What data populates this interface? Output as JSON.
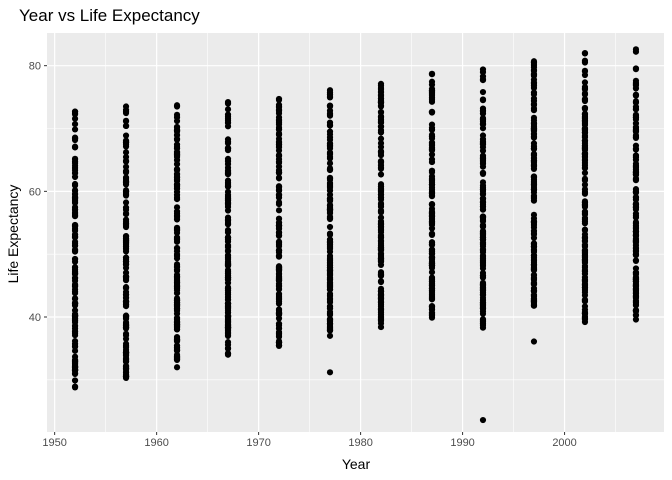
{
  "chart_data": {
    "type": "scatter",
    "title": "Year vs Life Expectancy",
    "xlabel": "Year",
    "ylabel": "Life Expectancy",
    "xlim": [
      1949.25,
      2009.75
    ],
    "ylim": [
      21.7,
      85.2
    ],
    "x_ticks": [
      1950,
      1960,
      1970,
      1980,
      1990,
      2000
    ],
    "x_tick_labels": [
      "1950",
      "1960",
      "1970",
      "1980",
      "1990",
      "2000"
    ],
    "y_ticks": [
      40,
      60,
      80
    ],
    "y_tick_labels": [
      "40",
      "60",
      "80"
    ],
    "grid": true,
    "panel_color": "#ebebeb",
    "grid_color": "#ffffff",
    "point_color": "#000000",
    "groups": [
      {
        "x": 1952,
        "min": 28.8,
        "max": 72.7
      },
      {
        "x": 1957,
        "min": 30.3,
        "max": 73.5
      },
      {
        "x": 1962,
        "min": 32.0,
        "max": 73.7
      },
      {
        "x": 1967,
        "min": 34.0,
        "max": 74.2
      },
      {
        "x": 1972,
        "min": 35.4,
        "max": 74.7
      },
      {
        "x": 1977,
        "min": 37.0,
        "max": 76.1
      },
      {
        "x": 1982,
        "min": 38.4,
        "max": 77.1
      },
      {
        "x": 1987,
        "min": 39.9,
        "max": 78.7
      },
      {
        "x": 1992,
        "min": 38.3,
        "max": 79.4
      },
      {
        "x": 1997,
        "min": 41.8,
        "max": 80.7
      },
      {
        "x": 2002,
        "min": 39.2,
        "max": 82.0
      },
      {
        "x": 2007,
        "min": 39.6,
        "max": 82.6
      }
    ],
    "outliers": [
      {
        "x": 1977,
        "y": 31.2
      },
      {
        "x": 1992,
        "y": 23.6
      },
      {
        "x": 1997,
        "y": 36.1
      }
    ]
  }
}
